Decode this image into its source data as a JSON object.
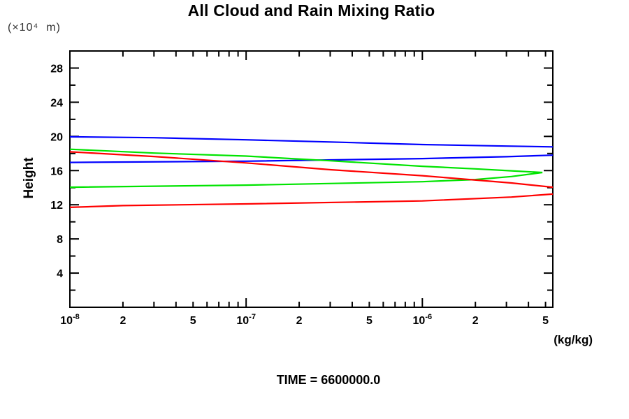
{
  "page": {
    "background": "#ffffff"
  },
  "chart_data": {
    "type": "line",
    "title": "All Cloud and Rain Mixing Ratio",
    "y_unit_label": "(×10⁴  m)",
    "ylabel": "Height",
    "xlabel": "(kg/kg)",
    "time_annotation": "TIME = 6600000.0",
    "x_scale": "log",
    "xlim": [
      1e-08,
      5.5e-06
    ],
    "ylim": [
      0,
      30
    ],
    "grid": false,
    "legend": "none",
    "frame": "box-with-inward-ticks",
    "axis_color": "#000000",
    "y_major_tick_labels": [
      28,
      24,
      20,
      16,
      12,
      8,
      4
    ],
    "y_minor_tick_step": 2,
    "x_tick_labels": [
      {
        "x": 1e-08,
        "text": "10",
        "sup": "-8"
      },
      {
        "x": 2e-08,
        "text": "2"
      },
      {
        "x": 5e-08,
        "text": "5"
      },
      {
        "x": 1e-07,
        "text": "10",
        "sup": "-7"
      },
      {
        "x": 2e-07,
        "text": "2"
      },
      {
        "x": 5e-07,
        "text": "5"
      },
      {
        "x": 1e-06,
        "text": "10",
        "sup": "-6"
      },
      {
        "x": 2e-06,
        "text": "2"
      },
      {
        "x": 5e-06,
        "text": "5"
      }
    ],
    "series": [
      {
        "name": "blue-upper",
        "color": "#0000ff",
        "points": [
          [
            1e-08,
            19.95
          ],
          [
            3e-08,
            19.85
          ],
          [
            1e-07,
            19.6
          ],
          [
            3e-07,
            19.35
          ],
          [
            1e-06,
            19.05
          ],
          [
            3e-06,
            18.87
          ],
          [
            5.5e-06,
            18.78
          ]
        ]
      },
      {
        "name": "blue-lower",
        "color": "#0000ff",
        "points": [
          [
            1e-08,
            16.95
          ],
          [
            1e-07,
            17.1
          ],
          [
            1e-06,
            17.4
          ],
          [
            3e-06,
            17.62
          ],
          [
            5.5e-06,
            17.8
          ]
        ]
      },
      {
        "name": "green-upper",
        "color": "#00e400",
        "points": [
          [
            1e-08,
            18.5
          ],
          [
            3e-08,
            18.05
          ],
          [
            1e-07,
            17.7
          ],
          [
            3e-07,
            17.15
          ],
          [
            1e-06,
            16.5
          ],
          [
            2e-06,
            16.2
          ],
          [
            3.2e-06,
            15.97
          ],
          [
            4.8e-06,
            15.78
          ]
        ]
      },
      {
        "name": "green-lower",
        "color": "#00e400",
        "points": [
          [
            1e-08,
            14.05
          ],
          [
            1e-07,
            14.3
          ],
          [
            1e-06,
            14.7
          ],
          [
            2e-06,
            14.95
          ],
          [
            3.2e-06,
            15.3
          ],
          [
            4.8e-06,
            15.78
          ]
        ]
      },
      {
        "name": "red-upper",
        "color": "#ff0000",
        "points": [
          [
            1e-08,
            18.2
          ],
          [
            3e-08,
            17.65
          ],
          [
            1e-07,
            16.9
          ],
          [
            3e-07,
            16.1
          ],
          [
            1e-06,
            15.4
          ],
          [
            3.2e-06,
            14.55
          ],
          [
            5.5e-06,
            14.05
          ]
        ]
      },
      {
        "name": "red-lower",
        "color": "#ff0000",
        "points": [
          [
            1e-08,
            11.7
          ],
          [
            2e-08,
            11.9
          ],
          [
            1e-07,
            12.1
          ],
          [
            1e-06,
            12.45
          ],
          [
            3.2e-06,
            12.9
          ],
          [
            5.5e-06,
            13.25
          ]
        ]
      }
    ]
  }
}
